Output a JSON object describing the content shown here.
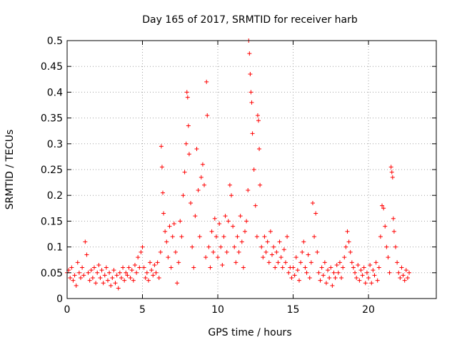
{
  "chart_data": {
    "type": "scatter",
    "title": "Day 165 of 2017, SRMTID for receiver harb",
    "xlabel": "GPS time / hours",
    "ylabel": "SRMTID / TECUs",
    "xlim": [
      0,
      24.5
    ],
    "ylim": [
      0,
      0.5
    ],
    "xticks": [
      0,
      5,
      10,
      15,
      20
    ],
    "xtick_labels": [
      "0",
      "5",
      "10",
      "15",
      "20"
    ],
    "yticks": [
      0,
      0.05,
      0.1,
      0.15,
      0.2,
      0.25,
      0.3,
      0.35,
      0.4,
      0.45,
      0.5
    ],
    "ytick_labels": [
      "0",
      "0.05",
      "0.1",
      "0.15",
      "0.2",
      "0.25",
      "0.3",
      "0.35",
      "0.4",
      "0.45",
      "0.5"
    ],
    "grid": true,
    "marker": "+",
    "marker_color": "#ff0000",
    "series": [
      {
        "name": "SRMTID",
        "points": [
          [
            0.0,
            0.05
          ],
          [
            0.1,
            0.055
          ],
          [
            0.2,
            0.04
          ],
          [
            0.3,
            0.06
          ],
          [
            0.4,
            0.035
          ],
          [
            0.5,
            0.045
          ],
          [
            0.6,
            0.025
          ],
          [
            0.7,
            0.07
          ],
          [
            0.8,
            0.05
          ],
          [
            0.9,
            0.04
          ],
          [
            1.0,
            0.06
          ],
          [
            1.1,
            0.045
          ],
          [
            1.2,
            0.11
          ],
          [
            1.3,
            0.085
          ],
          [
            1.4,
            0.05
          ],
          [
            1.5,
            0.035
          ],
          [
            1.6,
            0.055
          ],
          [
            1.7,
            0.04
          ],
          [
            1.8,
            0.06
          ],
          [
            1.9,
            0.03
          ],
          [
            2.0,
            0.05
          ],
          [
            2.1,
            0.065
          ],
          [
            2.2,
            0.04
          ],
          [
            2.3,
            0.055
          ],
          [
            2.4,
            0.03
          ],
          [
            2.5,
            0.045
          ],
          [
            2.6,
            0.06
          ],
          [
            2.7,
            0.035
          ],
          [
            2.8,
            0.05
          ],
          [
            2.9,
            0.025
          ],
          [
            3.0,
            0.04
          ],
          [
            3.1,
            0.055
          ],
          [
            3.2,
            0.03
          ],
          [
            3.3,
            0.045
          ],
          [
            3.4,
            0.02
          ],
          [
            3.5,
            0.05
          ],
          [
            3.6,
            0.04
          ],
          [
            3.7,
            0.06
          ],
          [
            3.8,
            0.035
          ],
          [
            3.9,
            0.05
          ],
          [
            4.0,
            0.045
          ],
          [
            4.1,
            0.06
          ],
          [
            4.2,
            0.04
          ],
          [
            4.3,
            0.055
          ],
          [
            4.4,
            0.035
          ],
          [
            4.5,
            0.065
          ],
          [
            4.6,
            0.05
          ],
          [
            4.7,
            0.08
          ],
          [
            4.8,
            0.06
          ],
          [
            4.9,
            0.09
          ],
          [
            5.0,
            0.1
          ],
          [
            5.1,
            0.06
          ],
          [
            5.2,
            0.04
          ],
          [
            5.3,
            0.05
          ],
          [
            5.4,
            0.035
          ],
          [
            5.5,
            0.07
          ],
          [
            5.6,
            0.055
          ],
          [
            5.7,
            0.045
          ],
          [
            5.8,
            0.065
          ],
          [
            5.9,
            0.05
          ],
          [
            6.0,
            0.07
          ],
          [
            6.1,
            0.04
          ],
          [
            6.2,
            0.09
          ],
          [
            6.25,
            0.295
          ],
          [
            6.3,
            0.255
          ],
          [
            6.35,
            0.205
          ],
          [
            6.4,
            0.165
          ],
          [
            6.5,
            0.13
          ],
          [
            6.6,
            0.11
          ],
          [
            6.7,
            0.08
          ],
          [
            6.8,
            0.14
          ],
          [
            6.9,
            0.06
          ],
          [
            7.0,
            0.12
          ],
          [
            7.1,
            0.145
          ],
          [
            7.2,
            0.09
          ],
          [
            7.3,
            0.03
          ],
          [
            7.4,
            0.07
          ],
          [
            7.5,
            0.15
          ],
          [
            7.6,
            0.12
          ],
          [
            7.7,
            0.2
          ],
          [
            7.8,
            0.245
          ],
          [
            7.9,
            0.3
          ],
          [
            7.95,
            0.4
          ],
          [
            8.0,
            0.39
          ],
          [
            8.05,
            0.335
          ],
          [
            8.1,
            0.28
          ],
          [
            8.2,
            0.185
          ],
          [
            8.3,
            0.1
          ],
          [
            8.4,
            0.06
          ],
          [
            8.5,
            0.16
          ],
          [
            8.6,
            0.29
          ],
          [
            8.7,
            0.21
          ],
          [
            8.8,
            0.12
          ],
          [
            8.9,
            0.235
          ],
          [
            9.0,
            0.26
          ],
          [
            9.1,
            0.22
          ],
          [
            9.2,
            0.08
          ],
          [
            9.25,
            0.42
          ],
          [
            9.3,
            0.355
          ],
          [
            9.4,
            0.1
          ],
          [
            9.5,
            0.06
          ],
          [
            9.6,
            0.13
          ],
          [
            9.7,
            0.09
          ],
          [
            9.8,
            0.155
          ],
          [
            9.9,
            0.12
          ],
          [
            10.0,
            0.08
          ],
          [
            10.1,
            0.145
          ],
          [
            10.2,
            0.1
          ],
          [
            10.3,
            0.065
          ],
          [
            10.4,
            0.12
          ],
          [
            10.5,
            0.16
          ],
          [
            10.6,
            0.09
          ],
          [
            10.7,
            0.15
          ],
          [
            10.8,
            0.22
          ],
          [
            10.9,
            0.2
          ],
          [
            11.0,
            0.14
          ],
          [
            11.1,
            0.1
          ],
          [
            11.2,
            0.07
          ],
          [
            11.3,
            0.12
          ],
          [
            11.4,
            0.09
          ],
          [
            11.5,
            0.16
          ],
          [
            11.6,
            0.11
          ],
          [
            11.7,
            0.06
          ],
          [
            11.8,
            0.13
          ],
          [
            11.9,
            0.15
          ],
          [
            12.0,
            0.21
          ],
          [
            12.05,
            0.5
          ],
          [
            12.1,
            0.475
          ],
          [
            12.15,
            0.435
          ],
          [
            12.2,
            0.4
          ],
          [
            12.25,
            0.38
          ],
          [
            12.3,
            0.32
          ],
          [
            12.4,
            0.25
          ],
          [
            12.5,
            0.18
          ],
          [
            12.6,
            0.12
          ],
          [
            12.65,
            0.355
          ],
          [
            12.7,
            0.345
          ],
          [
            12.75,
            0.29
          ],
          [
            12.8,
            0.22
          ],
          [
            12.9,
            0.1
          ],
          [
            13.0,
            0.08
          ],
          [
            13.1,
            0.12
          ],
          [
            13.2,
            0.09
          ],
          [
            13.3,
            0.11
          ],
          [
            13.4,
            0.07
          ],
          [
            13.5,
            0.13
          ],
          [
            13.6,
            0.085
          ],
          [
            13.7,
            0.1
          ],
          [
            13.8,
            0.06
          ],
          [
            13.9,
            0.09
          ],
          [
            14.0,
            0.07
          ],
          [
            14.1,
            0.11
          ],
          [
            14.2,
            0.08
          ],
          [
            14.3,
            0.06
          ],
          [
            14.4,
            0.095
          ],
          [
            14.5,
            0.07
          ],
          [
            14.6,
            0.12
          ],
          [
            14.7,
            0.05
          ],
          [
            14.8,
            0.06
          ],
          [
            14.9,
            0.04
          ],
          [
            15.0,
            0.06
          ],
          [
            15.1,
            0.045
          ],
          [
            15.2,
            0.08
          ],
          [
            15.3,
            0.055
          ],
          [
            15.4,
            0.035
          ],
          [
            15.5,
            0.07
          ],
          [
            15.6,
            0.09
          ],
          [
            15.7,
            0.11
          ],
          [
            15.8,
            0.06
          ],
          [
            15.9,
            0.05
          ],
          [
            16.0,
            0.085
          ],
          [
            16.1,
            0.04
          ],
          [
            16.2,
            0.07
          ],
          [
            16.3,
            0.185
          ],
          [
            16.4,
            0.12
          ],
          [
            16.5,
            0.165
          ],
          [
            16.6,
            0.09
          ],
          [
            16.7,
            0.05
          ],
          [
            16.8,
            0.035
          ],
          [
            16.9,
            0.06
          ],
          [
            17.0,
            0.045
          ],
          [
            17.1,
            0.07
          ],
          [
            17.2,
            0.03
          ],
          [
            17.3,
            0.055
          ],
          [
            17.4,
            0.04
          ],
          [
            17.5,
            0.06
          ],
          [
            17.6,
            0.025
          ],
          [
            17.7,
            0.05
          ],
          [
            17.8,
            0.04
          ],
          [
            17.9,
            0.065
          ],
          [
            18.0,
            0.05
          ],
          [
            18.1,
            0.07
          ],
          [
            18.2,
            0.04
          ],
          [
            18.3,
            0.06
          ],
          [
            18.4,
            0.08
          ],
          [
            18.5,
            0.1
          ],
          [
            18.6,
            0.13
          ],
          [
            18.7,
            0.11
          ],
          [
            18.8,
            0.09
          ],
          [
            18.9,
            0.07
          ],
          [
            19.0,
            0.06
          ],
          [
            19.1,
            0.05
          ],
          [
            19.2,
            0.04
          ],
          [
            19.3,
            0.065
          ],
          [
            19.4,
            0.035
          ],
          [
            19.5,
            0.055
          ],
          [
            19.6,
            0.045
          ],
          [
            19.7,
            0.06
          ],
          [
            19.8,
            0.03
          ],
          [
            19.9,
            0.05
          ],
          [
            20.0,
            0.04
          ],
          [
            20.1,
            0.065
          ],
          [
            20.2,
            0.03
          ],
          [
            20.3,
            0.055
          ],
          [
            20.4,
            0.045
          ],
          [
            20.5,
            0.07
          ],
          [
            20.6,
            0.035
          ],
          [
            20.7,
            0.06
          ],
          [
            20.8,
            0.12
          ],
          [
            20.9,
            0.18
          ],
          [
            21.0,
            0.175
          ],
          [
            21.1,
            0.14
          ],
          [
            21.2,
            0.1
          ],
          [
            21.3,
            0.08
          ],
          [
            21.4,
            0.05
          ],
          [
            21.5,
            0.255
          ],
          [
            21.55,
            0.245
          ],
          [
            21.6,
            0.235
          ],
          [
            21.65,
            0.155
          ],
          [
            21.7,
            0.13
          ],
          [
            21.8,
            0.1
          ],
          [
            21.9,
            0.07
          ],
          [
            22.0,
            0.05
          ],
          [
            22.1,
            0.04
          ],
          [
            22.2,
            0.06
          ],
          [
            22.3,
            0.045
          ],
          [
            22.4,
            0.035
          ],
          [
            22.5,
            0.055
          ],
          [
            22.6,
            0.04
          ],
          [
            22.7,
            0.05
          ]
        ]
      }
    ]
  }
}
